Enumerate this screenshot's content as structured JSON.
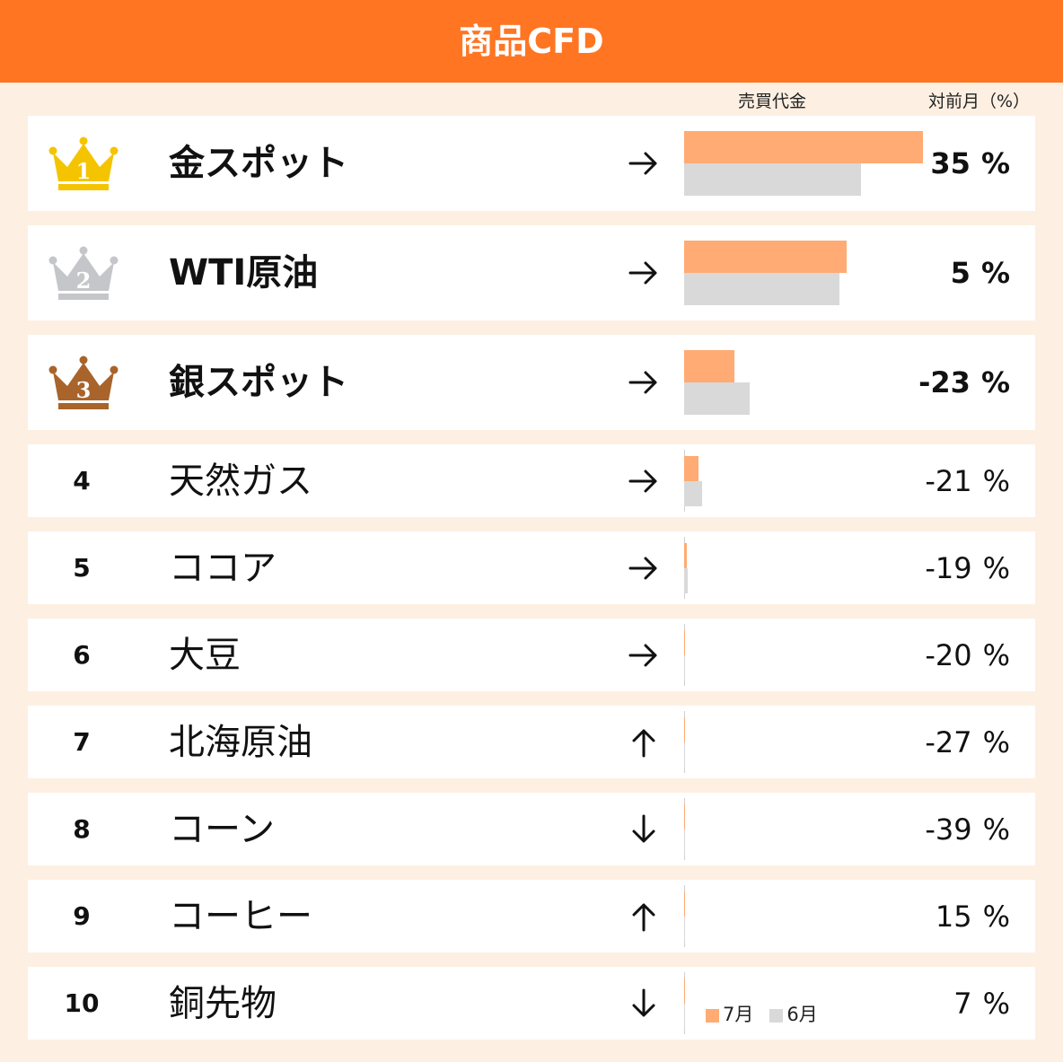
{
  "header": {
    "title": "商品CFD"
  },
  "columns": {
    "sales": "売買代金",
    "mom": "対前月（%）"
  },
  "chart_data": {
    "type": "bar",
    "title": "商品CFD",
    "series": [
      {
        "name": "7月",
        "color": "#ffab73"
      },
      {
        "name": "6月",
        "color": "#d9d9d9"
      }
    ],
    "rows": [
      {
        "rank": "1",
        "name": "金スポット",
        "trend": "right",
        "jul": 100,
        "jun": 74,
        "mom": "35",
        "unit": "%"
      },
      {
        "rank": "2",
        "name": "WTI原油",
        "trend": "right",
        "jul": 68,
        "jun": 65,
        "mom": "5",
        "unit": "%"
      },
      {
        "rank": "3",
        "name": "銀スポット",
        "trend": "right",
        "jul": 21,
        "jun": 27.5,
        "mom": "-23",
        "unit": "%"
      },
      {
        "rank": "4",
        "name": "天然ガス",
        "trend": "right",
        "jul": 6,
        "jun": 7.5,
        "mom": "-21",
        "unit": "%"
      },
      {
        "rank": "5",
        "name": "ココア",
        "trend": "right",
        "jul": 1.1,
        "jun": 1.4,
        "mom": "-19",
        "unit": "%"
      },
      {
        "rank": "6",
        "name": "大豆",
        "trend": "right",
        "jul": 0.3,
        "jun": 0.4,
        "mom": "-20",
        "unit": "%"
      },
      {
        "rank": "7",
        "name": "北海原油",
        "trend": "up",
        "jul": 0.3,
        "jun": 0.4,
        "mom": "-27",
        "unit": "%"
      },
      {
        "rank": "8",
        "name": "コーン",
        "trend": "down",
        "jul": 0.2,
        "jun": 0.3,
        "mom": "-39",
        "unit": "%"
      },
      {
        "rank": "9",
        "name": "コーヒー",
        "trend": "up",
        "jul": 0.2,
        "jun": 0.2,
        "mom": "15",
        "unit": "%"
      },
      {
        "rank": "10",
        "name": "銅先物",
        "trend": "down",
        "jul": 0.1,
        "jun": 0.1,
        "mom": "7",
        "unit": "%"
      }
    ],
    "xlim": [
      0,
      100
    ]
  },
  "crown_colors": {
    "1": "#f5c400",
    "2": "#c4c6c9",
    "3": "#a8642a"
  }
}
